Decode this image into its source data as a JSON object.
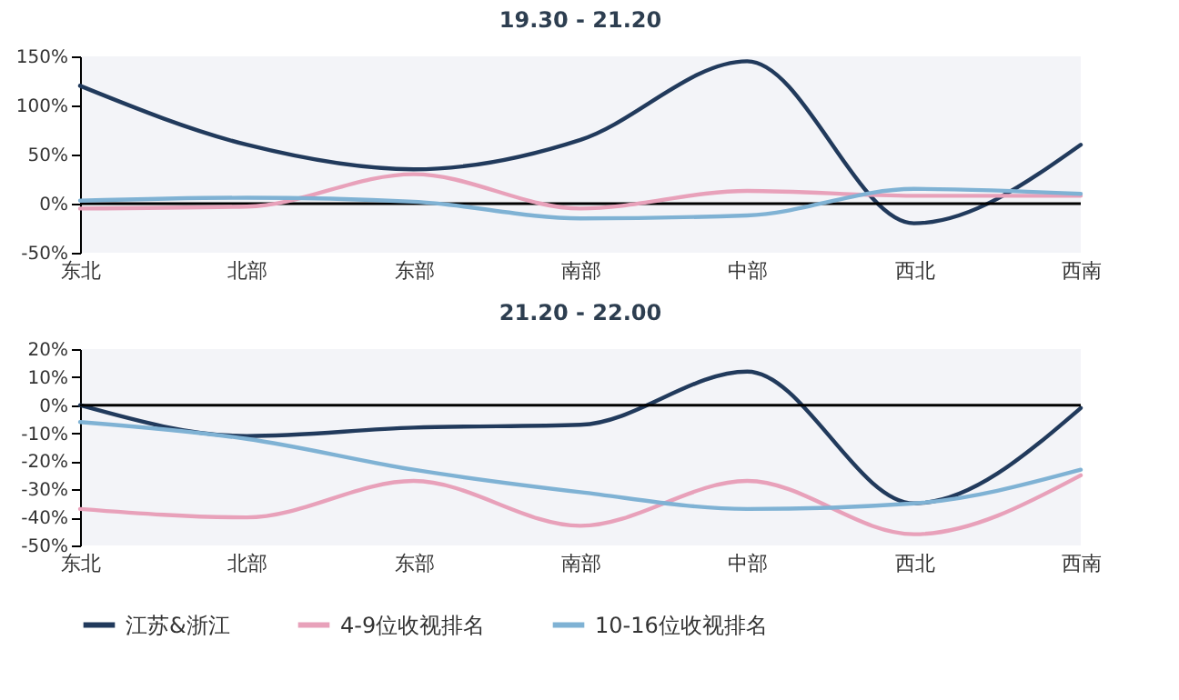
{
  "chart_data": [
    {
      "type": "line",
      "title": "19.30 - 21.20",
      "categories": [
        "东北",
        "北部",
        "东部",
        "南部",
        "中部",
        "西北",
        "西南"
      ],
      "series": [
        {
          "color": "#213a5c",
          "values": [
            120,
            60,
            35,
            65,
            145,
            -20,
            60
          ]
        },
        {
          "color": "#e8a1ba",
          "values": [
            -5,
            -3,
            30,
            -5,
            13,
            8,
            8
          ]
        },
        {
          "color": "#7fb2d4",
          "values": [
            3,
            6,
            2,
            -15,
            -12,
            15,
            10
          ]
        }
      ],
      "ylim": [
        -50,
        150
      ],
      "yticks": [
        {
          "value": -50,
          "label": "-50%"
        },
        {
          "value": 0,
          "label": "0%"
        },
        {
          "value": 50,
          "label": "50%"
        },
        {
          "value": 100,
          "label": "100%"
        },
        {
          "value": 150,
          "label": "150%"
        }
      ],
      "ref_lines": [
        {
          "axis": "y",
          "value": 0,
          "color": "#000000"
        }
      ],
      "grid": false
    },
    {
      "type": "line",
      "title": "21.20 - 22.00",
      "categories": [
        "东北",
        "北部",
        "东部",
        "南部",
        "中部",
        "西北",
        "西南"
      ],
      "series": [
        {
          "name": "江苏&浙江",
          "color": "#213a5c",
          "values": [
            0,
            -11,
            -8,
            -7,
            12,
            -35,
            -1
          ]
        },
        {
          "name": "4-9位收视排名",
          "color": "#e8a1ba",
          "values": [
            -37,
            -40,
            -27,
            -43,
            -27,
            -46,
            -25
          ]
        },
        {
          "name": "10-16位收视排名",
          "color": "#7fb2d4",
          "values": [
            -6,
            -12,
            -23,
            -31,
            -37,
            -35,
            -23
          ]
        }
      ],
      "ylim": [
        -50,
        20
      ],
      "yticks": [
        {
          "value": -50,
          "label": "-50%"
        },
        {
          "value": -40,
          "label": "-40%"
        },
        {
          "value": -30,
          "label": "-30%"
        },
        {
          "value": -20,
          "label": "-20%"
        },
        {
          "value": -10,
          "label": "-10%"
        },
        {
          "value": 0,
          "label": "0%"
        },
        {
          "value": 10,
          "label": "10%"
        },
        {
          "value": 20,
          "label": "20%"
        }
      ],
      "ref_lines": [
        {
          "axis": "y",
          "value": 0,
          "color": "#000000"
        }
      ],
      "grid": false,
      "legend": "bottom"
    }
  ]
}
